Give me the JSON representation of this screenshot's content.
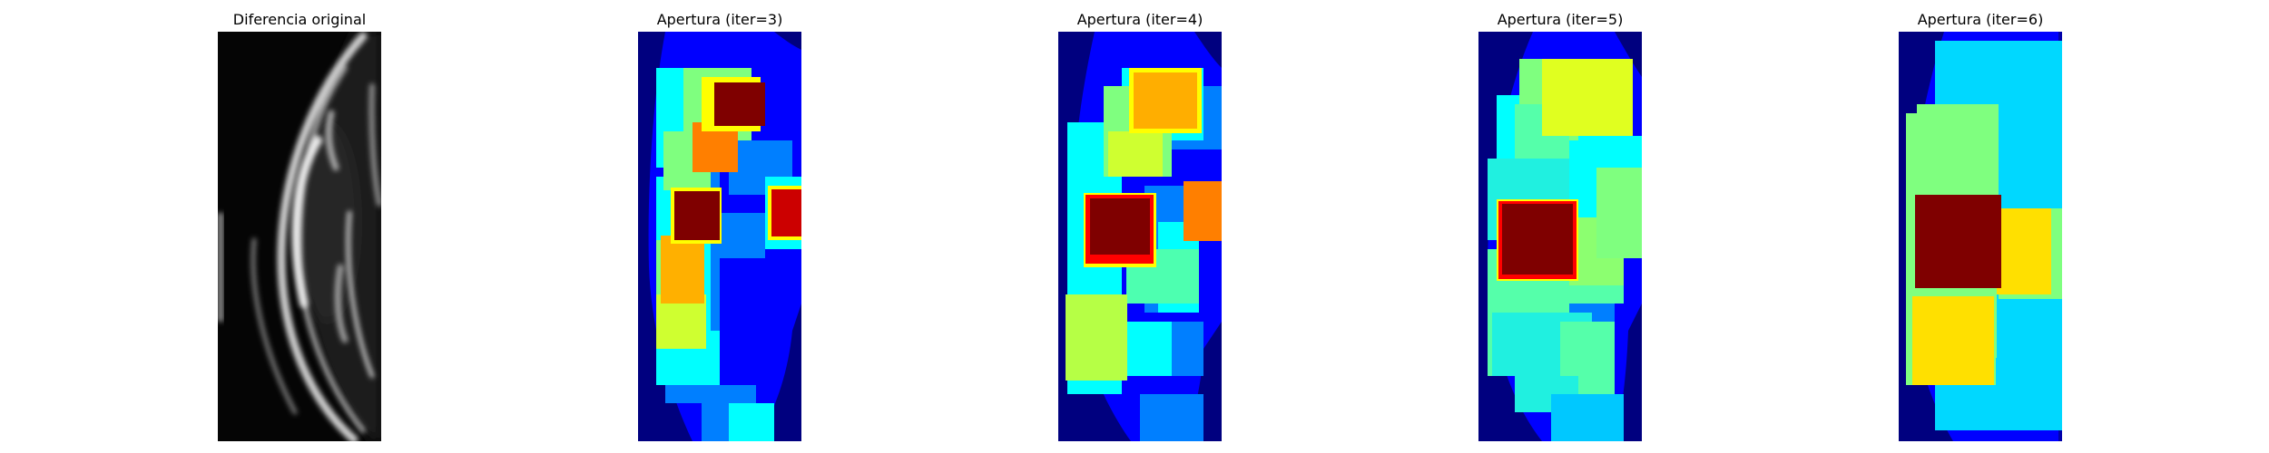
{
  "panels": [
    {
      "title": "Diferencia original"
    },
    {
      "title": "Apertura (iter=3)"
    },
    {
      "title": "Apertura (iter=4)"
    },
    {
      "title": "Apertura (iter=5)"
    },
    {
      "title": "Apertura (iter=6)"
    }
  ],
  "colormap": [
    "#00007f",
    "#0000ff",
    "#007fff",
    "#00ffff",
    "#7fff7f",
    "#ffff00",
    "#ff7f00",
    "#ff0000",
    "#7f0000"
  ]
}
